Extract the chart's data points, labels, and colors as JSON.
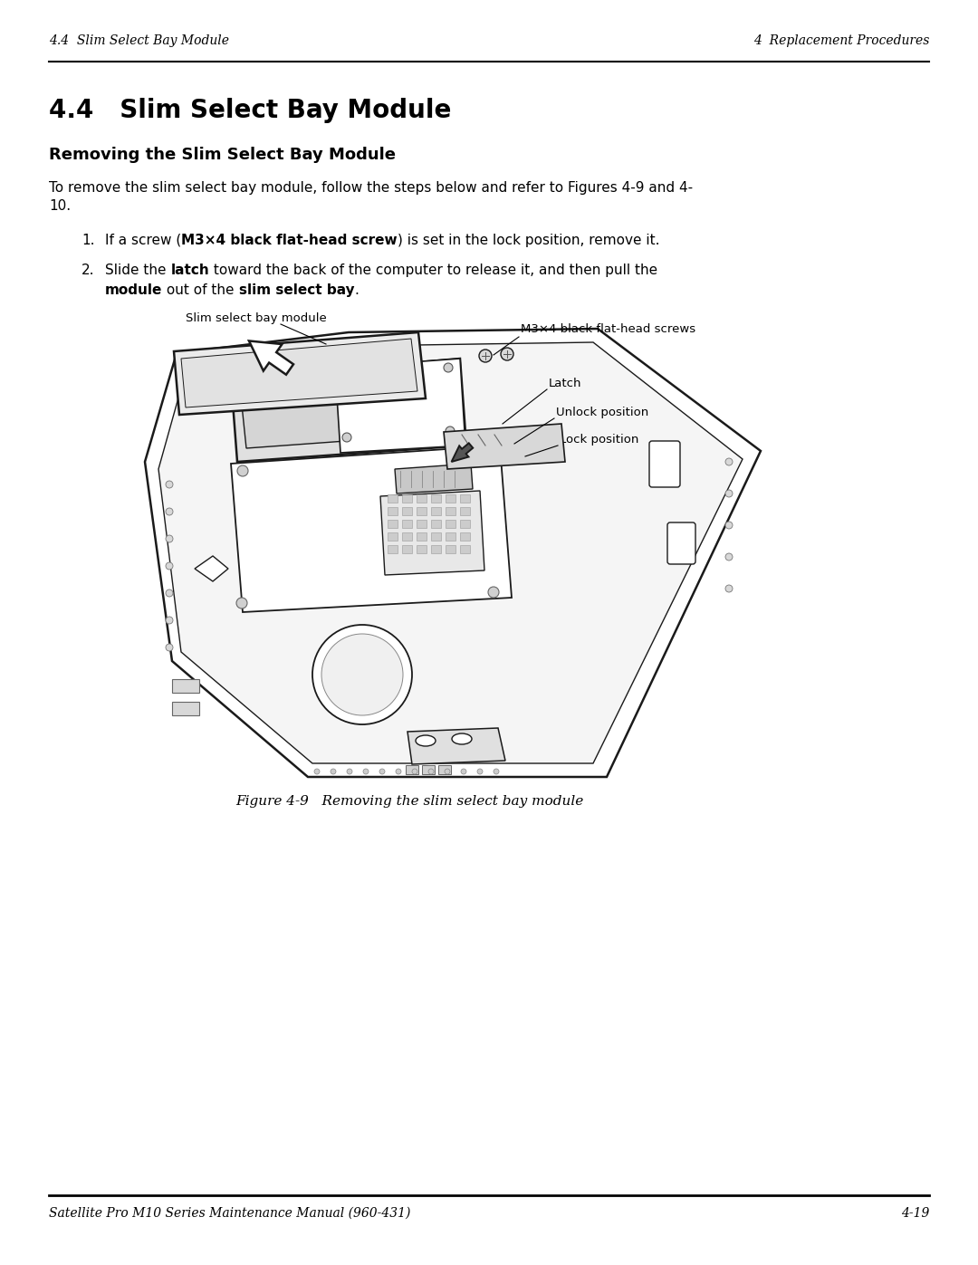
{
  "header_left": "4.4  Slim Select Bay Module",
  "header_right": "4  Replacement Procedures",
  "footer_left": "Satellite Pro M10 Series Maintenance Manual (960-431)",
  "footer_right": "4-19",
  "section_title": "4.4   Slim Select Bay Module",
  "subsection_title": "Removing the Slim Select Bay Module",
  "para1_line1": "To remove the slim select bay module, follow the steps below and refer to Figures 4-9 and 4-",
  "para1_line2": "10.",
  "step1_pre": "If a screw (",
  "step1_bold": "M3×4 black flat-head screw",
  "step1_post": ") is set in the lock position, remove it.",
  "step2_pre": "Slide the ",
  "step2_bold1": "latch",
  "step2_mid1": " toward the back of the computer to release it, and then pull the",
  "step2_bold2": "module",
  "step2_mid2": " out of the ",
  "step2_bold3": "slim select bay",
  "step2_post": ".",
  "label_slim": "Slim select bay module",
  "label_screw": "M3×4 black flat-head screws",
  "label_latch": "Latch",
  "label_unlock": "Unlock position",
  "label_lock": "Lock position",
  "figure_caption": "Figure 4-9   Removing the slim select bay module",
  "background_color": "#ffffff",
  "text_color": "#000000",
  "header_fontsize": 10,
  "footer_fontsize": 10,
  "section_title_fontsize": 20,
  "subsection_title_fontsize": 13,
  "body_fontsize": 11,
  "label_fontsize": 9.5,
  "caption_fontsize": 11
}
